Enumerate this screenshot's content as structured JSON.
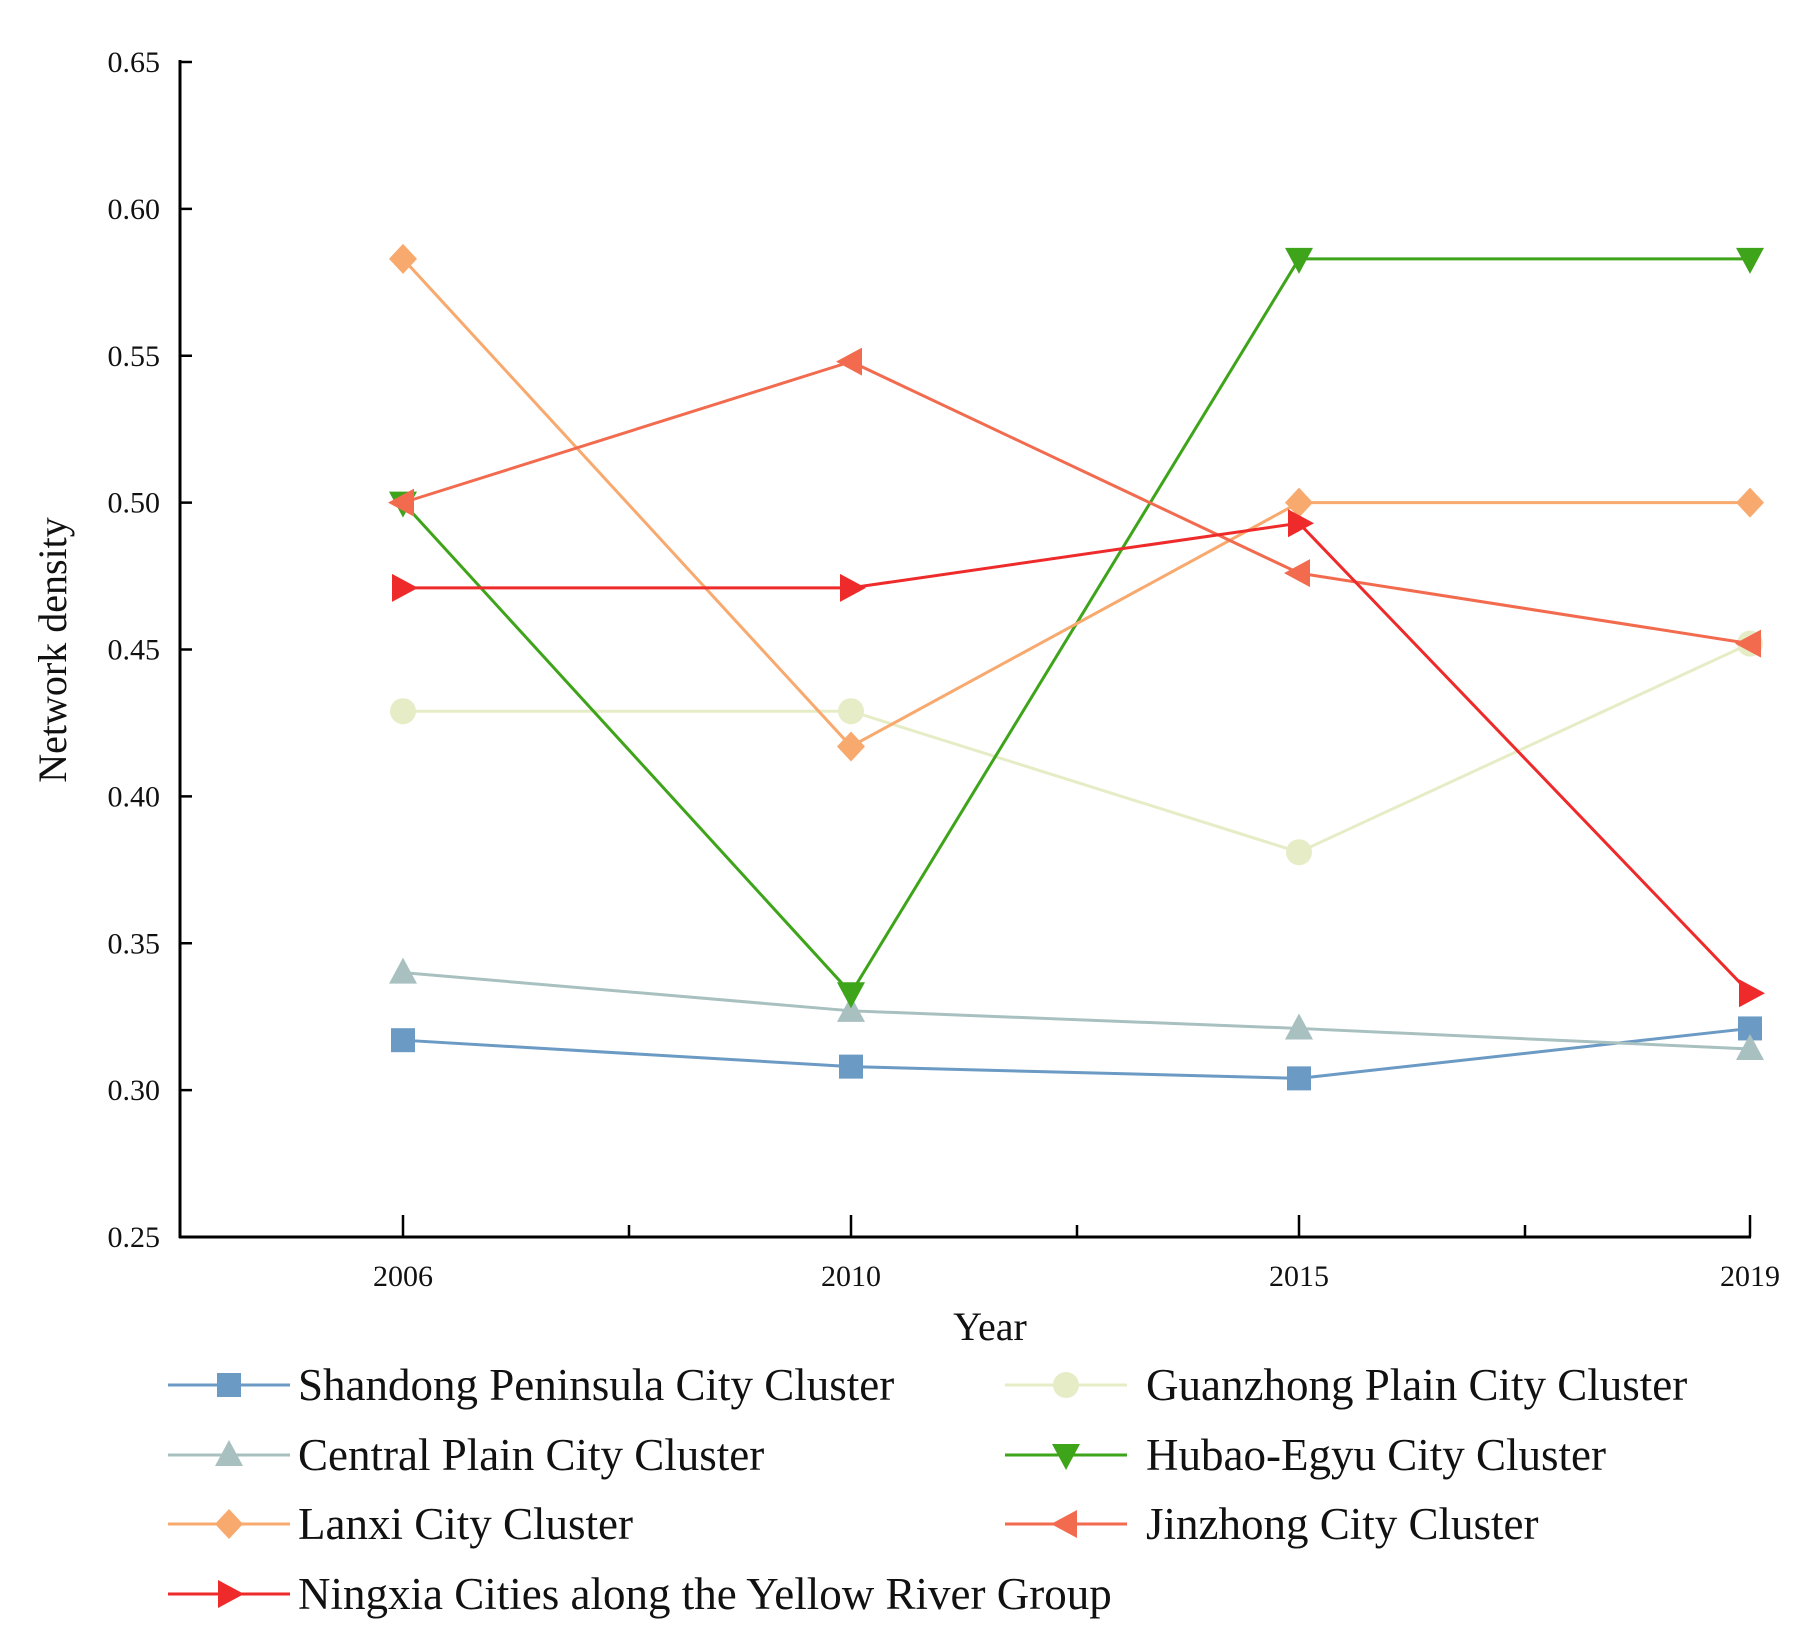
{
  "chart_data": {
    "type": "line",
    "title": "",
    "xlabel": "Year",
    "ylabel": "Network density",
    "categories": [
      "2006",
      "2010",
      "2015",
      "2019"
    ],
    "ylim": [
      0.25,
      0.65
    ],
    "yticks": [
      "0.25",
      "0.30",
      "0.35",
      "0.40",
      "0.45",
      "0.50",
      "0.55",
      "0.60",
      "0.65"
    ],
    "grid": false,
    "legend_position": "bottom",
    "series": [
      {
        "name": "Shandong Peninsula City Cluster",
        "marker": "square",
        "color": "#6b9ac4",
        "values": [
          0.317,
          0.308,
          0.304,
          0.321
        ]
      },
      {
        "name": "Guanzhong Plain City Cluster",
        "marker": "circle",
        "color": "#e6edc6",
        "values": [
          0.429,
          0.429,
          0.381,
          0.452
        ]
      },
      {
        "name": "Central Plain City Cluster",
        "marker": "triangle-up",
        "color": "#a9c0c0",
        "values": [
          0.34,
          0.327,
          0.321,
          0.314
        ]
      },
      {
        "name": " Hubao-Egyu City Cluster",
        "marker": "triangle-down",
        "color": "#3ea41a",
        "values": [
          0.5,
          0.333,
          0.583,
          0.583
        ]
      },
      {
        "name": "Lanxi City Cluster",
        "marker": "diamond",
        "color": "#f8a96e",
        "values": [
          0.583,
          0.417,
          0.5,
          0.5
        ]
      },
      {
        "name": "Jinzhong City Cluster",
        "marker": "triangle-left",
        "color": "#f26b4f",
        "values": [
          0.5,
          0.548,
          0.476,
          0.452
        ]
      },
      {
        "name": "Ningxia Cities along the Yellow River Group",
        "marker": "triangle-right",
        "color": "#ee2a2a",
        "values": [
          0.471,
          0.471,
          0.493,
          0.333
        ]
      }
    ]
  }
}
